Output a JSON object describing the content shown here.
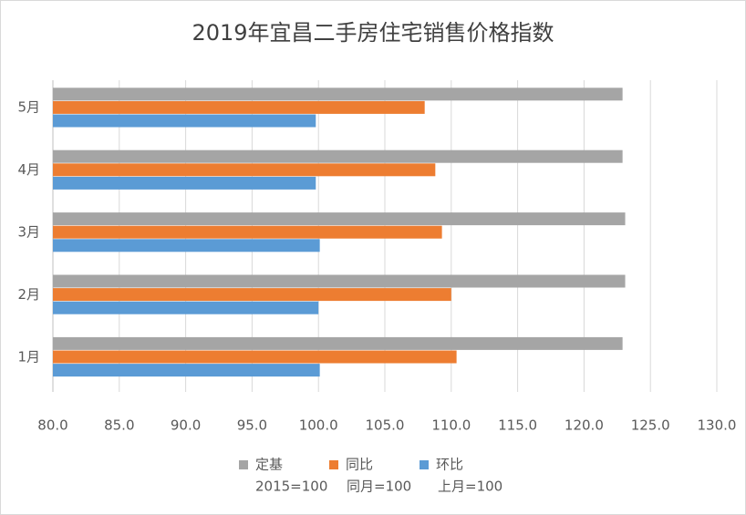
{
  "chart_data": {
    "type": "barh",
    "title": "2019年宜昌二手房住宅销售价格指数",
    "categories": [
      "1月",
      "2月",
      "3月",
      "4月",
      "5月"
    ],
    "series": [
      {
        "name": "定基",
        "color": "#a5a5a5",
        "values": [
          122.9,
          123.1,
          123.1,
          122.9,
          122.9
        ]
      },
      {
        "name": "同比",
        "color": "#ed7d31",
        "values": [
          110.4,
          110.0,
          109.3,
          108.8,
          108.0
        ]
      },
      {
        "name": "环比",
        "color": "#5b9bd5",
        "values": [
          100.1,
          100.0,
          100.1,
          99.8,
          99.8
        ]
      }
    ],
    "legend_notes": [
      "2015=100",
      "同月=100",
      "上月=100"
    ],
    "xlim": [
      80,
      130
    ],
    "xticks": [
      {
        "value": 80,
        "label": "80.0"
      },
      {
        "value": 85,
        "label": "85.0"
      },
      {
        "value": 90,
        "label": "90.0"
      },
      {
        "value": 95,
        "label": "95.0"
      },
      {
        "value": 100,
        "label": "100.0"
      },
      {
        "value": 105,
        "label": "105.0"
      },
      {
        "value": 110,
        "label": "110.0"
      },
      {
        "value": 115,
        "label": "115.0"
      },
      {
        "value": 120,
        "label": "120.0"
      },
      {
        "value": 125,
        "label": "125.0"
      },
      {
        "value": 130,
        "label": "130.0"
      }
    ],
    "grid": true
  }
}
